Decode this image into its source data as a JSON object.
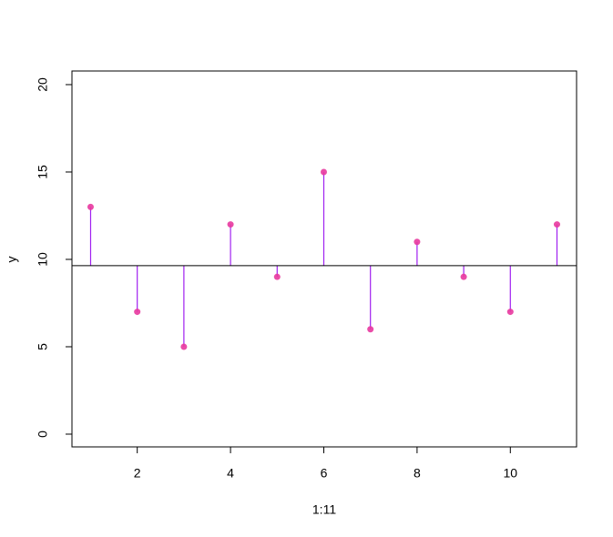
{
  "chart_data": {
    "type": "lollipop",
    "x": [
      1,
      2,
      3,
      4,
      5,
      6,
      7,
      8,
      9,
      10,
      11
    ],
    "values": [
      13,
      7,
      5,
      12,
      9,
      15,
      6,
      11,
      9,
      7,
      12
    ],
    "hline": 9.64,
    "xlabel": "1:11",
    "ylabel": "y",
    "xlim": [
      0.6,
      11.42
    ],
    "ylim": [
      -0.73,
      20.78
    ],
    "xticks": [
      2,
      4,
      6,
      8,
      10
    ],
    "yticks": [
      0,
      5,
      10,
      15,
      20
    ],
    "stem_color": "#a020f0",
    "point_color": "#e8389f",
    "line_color": "#000000"
  }
}
